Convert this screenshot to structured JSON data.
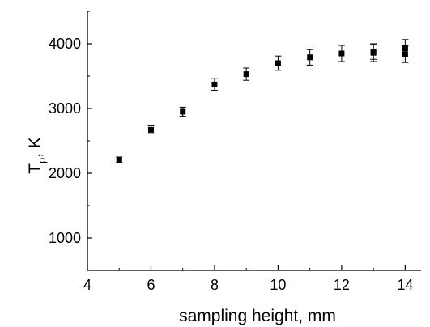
{
  "chart_data": {
    "type": "scatter",
    "xlabel": "sampling height, mm",
    "ylabel_main": "T",
    "ylabel_sub": "p",
    "ylabel_unit": ", K",
    "xlim": [
      4,
      14.5
    ],
    "ylim": [
      500,
      4500
    ],
    "xticks": [
      4,
      6,
      8,
      10,
      12,
      14
    ],
    "xtick_labels": [
      "4",
      "6",
      "8",
      "10",
      "12",
      "14"
    ],
    "yticks": [
      1000,
      2000,
      3000,
      4000
    ],
    "ytick_labels": [
      "1000",
      "2000",
      "3000",
      "4000"
    ],
    "grid": false,
    "series": [
      {
        "marker": "square",
        "color": "#000000",
        "points": [
          {
            "x": 5,
            "y": 2210,
            "err": 40
          },
          {
            "x": 6,
            "y": 2670,
            "err": 60
          },
          {
            "x": 7,
            "y": 2950,
            "err": 70
          },
          {
            "x": 8,
            "y": 3370,
            "err": 90
          },
          {
            "x": 9,
            "y": 3530,
            "err": 95
          },
          {
            "x": 10,
            "y": 3700,
            "err": 110
          },
          {
            "x": 11,
            "y": 3790,
            "err": 120
          },
          {
            "x": 12,
            "y": 3850,
            "err": 125
          },
          {
            "x": 13,
            "y": 3860,
            "err": 135
          },
          {
            "x": 13,
            "y": 3880,
            "err": 120
          },
          {
            "x": 14,
            "y": 3840,
            "err": 130
          },
          {
            "x": 14,
            "y": 3930,
            "err": 135
          }
        ]
      }
    ]
  }
}
